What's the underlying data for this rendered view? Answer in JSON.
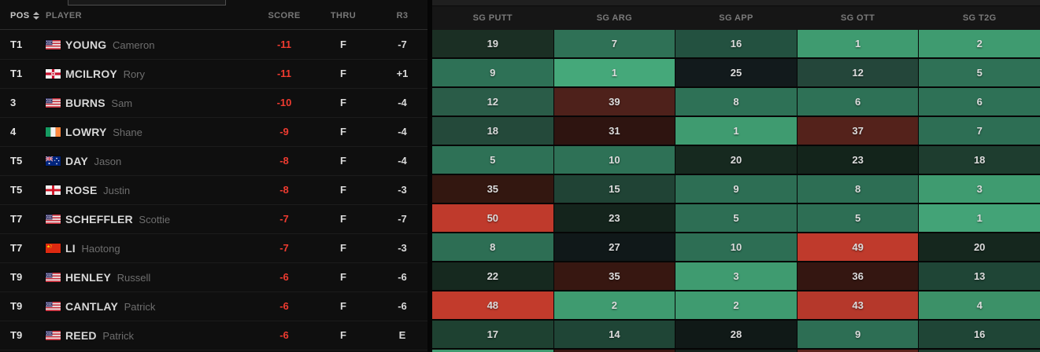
{
  "table": {
    "left_headers": {
      "pos": "POS",
      "player": "PLAYER",
      "score": "SCORE",
      "thru": "THRU",
      "r3": "R3"
    },
    "sg_headers": [
      "SG PUTT",
      "SG ARG",
      "SG APP",
      "SG OTT",
      "SG T2G"
    ],
    "colors": {
      "score_red": "#EF3B30",
      "bright_green": "#3F9B70",
      "medium_green": "#2E7156",
      "dark_green": "#1F4536",
      "near_black": "#13211B",
      "dark_red": "#371711",
      "bright_red": "#C13B2C"
    },
    "rows": [
      {
        "pos": "T1",
        "country": "us",
        "last": "YOUNG",
        "first": "Cameron",
        "score": "-11",
        "thru": "F",
        "r3": "-7",
        "sg": [
          {
            "v": "19",
            "c": "#1B2F24"
          },
          {
            "v": "7",
            "c": "#2F7156"
          },
          {
            "v": "16",
            "c": "#235140"
          },
          {
            "v": "1",
            "c": "#3F9B70"
          },
          {
            "v": "2",
            "c": "#3F9B70"
          }
        ]
      },
      {
        "pos": "T1",
        "country": "nir",
        "last": "MCILROY",
        "first": "Rory",
        "score": "-11",
        "thru": "F",
        "r3": "+1",
        "sg": [
          {
            "v": "9",
            "c": "#2E7156"
          },
          {
            "v": "1",
            "c": "#45A87A"
          },
          {
            "v": "25",
            "c": "#121A1C"
          },
          {
            "v": "12",
            "c": "#24463A"
          },
          {
            "v": "5",
            "c": "#2F7156"
          }
        ]
      },
      {
        "pos": "3",
        "country": "us",
        "last": "BURNS",
        "first": "Sam",
        "score": "-10",
        "thru": "F",
        "r3": "-4",
        "sg": [
          {
            "v": "12",
            "c": "#2A5C48"
          },
          {
            "v": "39",
            "c": "#4E211B"
          },
          {
            "v": "8",
            "c": "#2E7156"
          },
          {
            "v": "6",
            "c": "#2E7156"
          },
          {
            "v": "6",
            "c": "#2E7156"
          }
        ]
      },
      {
        "pos": "4",
        "country": "ie",
        "last": "LOWRY",
        "first": "Shane",
        "score": "-9",
        "thru": "F",
        "r3": "-4",
        "sg": [
          {
            "v": "18",
            "c": "#24493A"
          },
          {
            "v": "31",
            "c": "#2E1410"
          },
          {
            "v": "1",
            "c": "#3F9B70"
          },
          {
            "v": "37",
            "c": "#54221B"
          },
          {
            "v": "7",
            "c": "#2D6E54"
          }
        ]
      },
      {
        "pos": "T5",
        "country": "au",
        "last": "DAY",
        "first": "Jason",
        "score": "-8",
        "thru": "F",
        "r3": "-4",
        "sg": [
          {
            "v": "5",
            "c": "#2E7156"
          },
          {
            "v": "10",
            "c": "#2E7156"
          },
          {
            "v": "20",
            "c": "#16291F"
          },
          {
            "v": "23",
            "c": "#13241B"
          },
          {
            "v": "18",
            "c": "#1E3D2F"
          }
        ]
      },
      {
        "pos": "T5",
        "country": "en",
        "last": "ROSE",
        "first": "Justin",
        "score": "-8",
        "thru": "F",
        "r3": "-3",
        "sg": [
          {
            "v": "35",
            "c": "#331710"
          },
          {
            "v": "15",
            "c": "#204335"
          },
          {
            "v": "9",
            "c": "#2D6E54"
          },
          {
            "v": "8",
            "c": "#2D6E54"
          },
          {
            "v": "3",
            "c": "#3F9B70"
          }
        ]
      },
      {
        "pos": "T7",
        "country": "us",
        "last": "SCHEFFLER",
        "first": "Scottie",
        "score": "-7",
        "thru": "F",
        "r3": "-7",
        "sg": [
          {
            "v": "50",
            "c": "#BF3A2C"
          },
          {
            "v": "23",
            "c": "#14241C"
          },
          {
            "v": "5",
            "c": "#2D6E54"
          },
          {
            "v": "5",
            "c": "#2D6E54"
          },
          {
            "v": "1",
            "c": "#43A377"
          }
        ]
      },
      {
        "pos": "T7",
        "country": "cn",
        "last": "LI",
        "first": "Haotong",
        "score": "-7",
        "thru": "F",
        "r3": "-3",
        "sg": [
          {
            "v": "8",
            "c": "#2D6E54"
          },
          {
            "v": "27",
            "c": "#101819"
          },
          {
            "v": "10",
            "c": "#2D6E54"
          },
          {
            "v": "49",
            "c": "#BF3A2C"
          },
          {
            "v": "20",
            "c": "#15271E"
          }
        ]
      },
      {
        "pos": "T9",
        "country": "us",
        "last": "HENLEY",
        "first": "Russell",
        "score": "-6",
        "thru": "F",
        "r3": "-6",
        "sg": [
          {
            "v": "22",
            "c": "#16291F"
          },
          {
            "v": "35",
            "c": "#371711"
          },
          {
            "v": "3",
            "c": "#3F9B70"
          },
          {
            "v": "36",
            "c": "#341611"
          },
          {
            "v": "13",
            "c": "#1F4536"
          }
        ]
      },
      {
        "pos": "T9",
        "country": "us",
        "last": "CANTLAY",
        "first": "Patrick",
        "score": "-6",
        "thru": "F",
        "r3": "-6",
        "sg": [
          {
            "v": "48",
            "c": "#C23B2C"
          },
          {
            "v": "2",
            "c": "#3F9B70"
          },
          {
            "v": "2",
            "c": "#3F9B70"
          },
          {
            "v": "43",
            "c": "#B5382B"
          },
          {
            "v": "4",
            "c": "#3C9168"
          }
        ]
      },
      {
        "pos": "T9",
        "country": "us",
        "last": "REED",
        "first": "Patrick",
        "score": "-6",
        "thru": "F",
        "r3": "E",
        "sg": [
          {
            "v": "17",
            "c": "#1E4131"
          },
          {
            "v": "14",
            "c": "#1F4536"
          },
          {
            "v": "28",
            "c": "#101917"
          },
          {
            "v": "9",
            "c": "#2D6E54"
          },
          {
            "v": "16",
            "c": "#1F4536"
          }
        ]
      }
    ],
    "next_row_partial_colors": [
      "#3F9B70",
      "#3A1712",
      "#14211C",
      "#5C241D",
      "#1E3D2F"
    ]
  }
}
